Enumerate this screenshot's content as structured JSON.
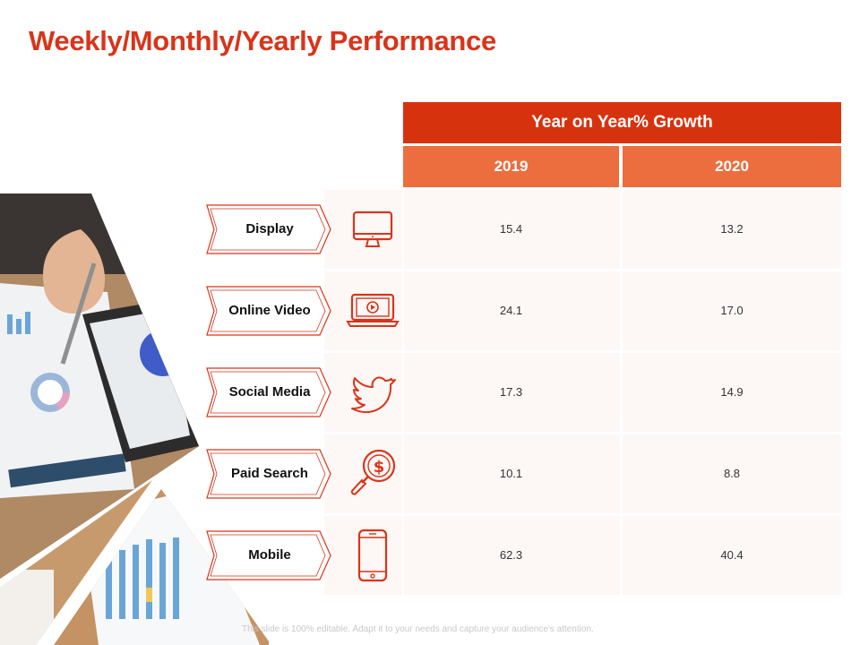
{
  "title": "Weekly/Monthly/Yearly Performance",
  "table": {
    "header": "Year on Year% Growth",
    "columns": [
      "2019",
      "2020"
    ],
    "rows": [
      {
        "label": "Display",
        "icon": "monitor-icon",
        "values": [
          "15.4",
          "13.2"
        ]
      },
      {
        "label": "Online Video",
        "icon": "laptop-video-icon",
        "values": [
          "24.1",
          "17.0"
        ]
      },
      {
        "label": "Social Media",
        "icon": "twitter-bird-icon",
        "values": [
          "17.3",
          "14.9"
        ]
      },
      {
        "label": "Paid Search",
        "icon": "dollar-search-icon",
        "values": [
          "10.1",
          "8.8"
        ]
      },
      {
        "label": "Mobile",
        "icon": "mobile-phone-icon",
        "values": [
          "62.3",
          "40.4"
        ]
      }
    ]
  },
  "footer": "This slide is 100% editable. Adapt it to your needs and capture your audience's attention.",
  "colors": {
    "accent": "#d9341a",
    "header_bg": "#d7320e",
    "subheader_bg": "#ec6d3e",
    "row_bg": "#fdf8f6"
  }
}
